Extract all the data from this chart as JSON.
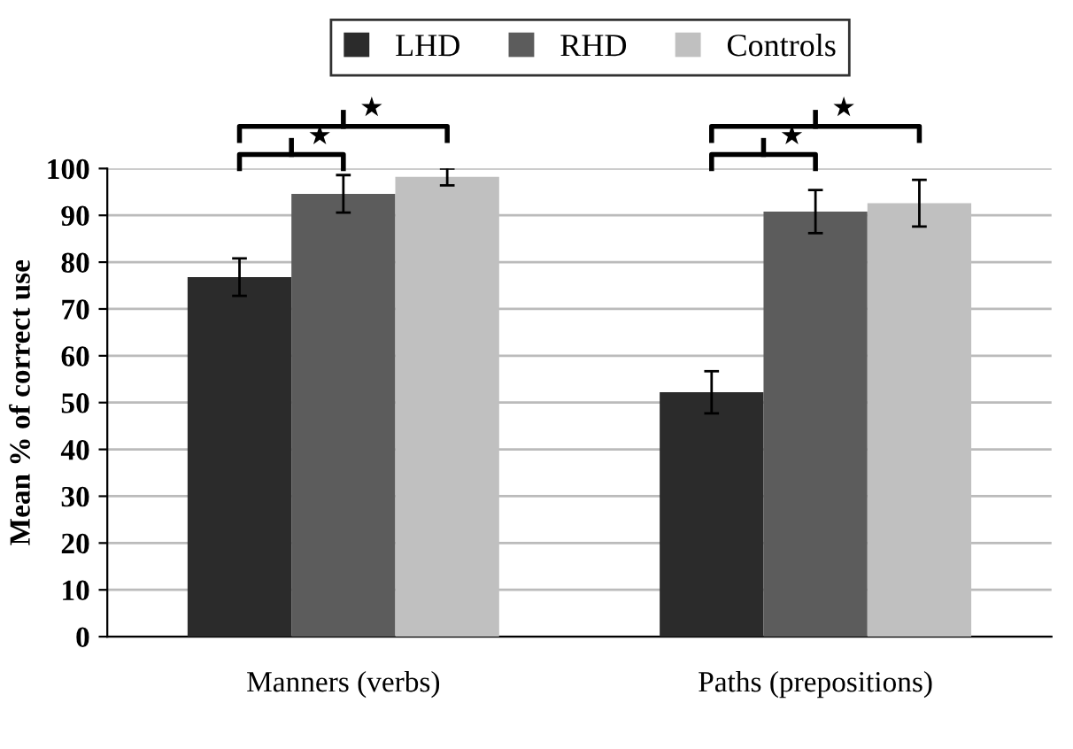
{
  "chart_data": {
    "type": "bar",
    "ylabel": "Mean % of correct use",
    "categories": [
      "Manners (verbs)",
      "Paths (prepositions)"
    ],
    "series": [
      {
        "name": "LHD",
        "color": "#2b2b2b",
        "values": [
          76.8,
          52.2
        ],
        "errors": [
          4,
          4.5
        ]
      },
      {
        "name": "RHD",
        "color": "#5c5c5c",
        "values": [
          94.6,
          90.8
        ],
        "errors": [
          4,
          4.6
        ]
      },
      {
        "name": "Controls",
        "color": "#c0c0c0",
        "values": [
          98.2,
          92.6
        ],
        "errors": [
          1.8,
          5
        ]
      }
    ],
    "ylim": [
      0,
      100
    ],
    "yticks": [
      0,
      10,
      20,
      30,
      40,
      50,
      60,
      70,
      80,
      90,
      100
    ],
    "grid": "y",
    "legend": "top",
    "annotations": [
      "★",
      "★",
      "★",
      "★"
    ]
  }
}
